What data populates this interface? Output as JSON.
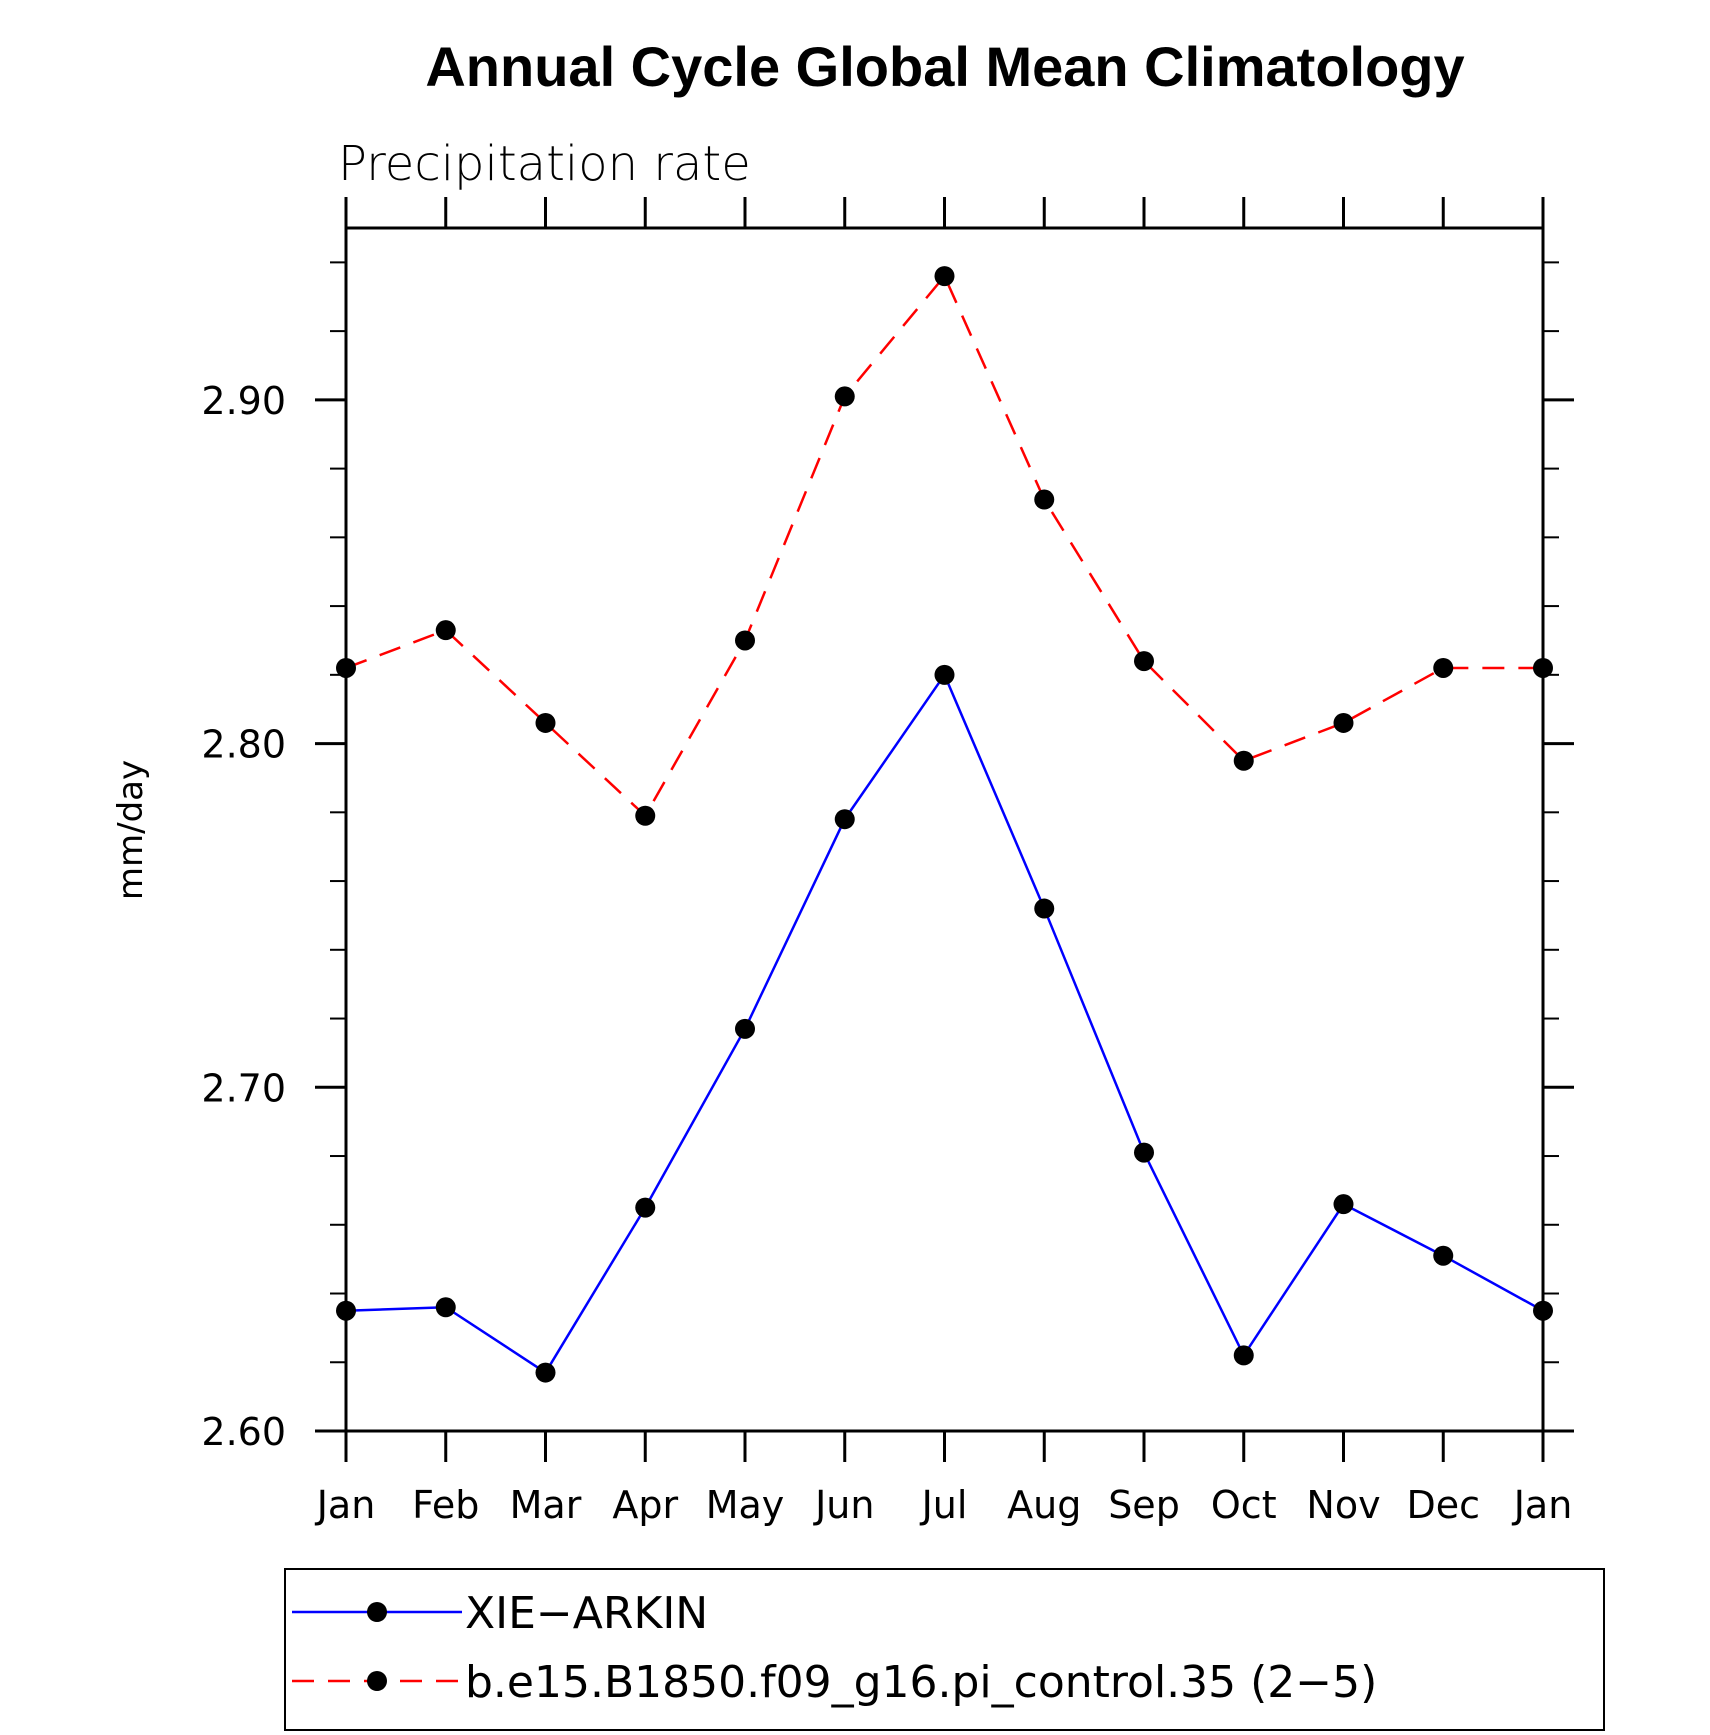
{
  "chart_data": {
    "type": "line",
    "title": "Annual Cycle Global Mean Climatology",
    "subtitle": "Precipitation rate",
    "xlabel": "",
    "ylabel": "mm/day",
    "categories": [
      "Jan",
      "Feb",
      "Mar",
      "Apr",
      "May",
      "Jun",
      "Jul",
      "Aug",
      "Sep",
      "Oct",
      "Nov",
      "Dec",
      "Jan"
    ],
    "y_ticks": [
      "2.60",
      "2.70",
      "2.80",
      "2.90"
    ],
    "ylim": [
      2.6,
      2.95
    ],
    "grid": false,
    "legend_position": "bottom",
    "series": [
      {
        "name": "XIE−ARKIN",
        "color": "#0000ff",
        "line_style": "solid",
        "marker": "filled-circle",
        "values": [
          2.635,
          2.636,
          2.617,
          2.665,
          2.717,
          2.778,
          2.82,
          2.752,
          2.681,
          2.622,
          2.666,
          2.651,
          2.635
        ]
      },
      {
        "name": "b.e15.B1850.f09_g16.pi_control.35 (2−5)",
        "color": "#ff0000",
        "line_style": "dashed",
        "marker": "filled-circle",
        "values": [
          2.822,
          2.833,
          2.806,
          2.779,
          2.83,
          2.901,
          2.936,
          2.871,
          2.824,
          2.795,
          2.806,
          2.822,
          2.822
        ]
      }
    ]
  }
}
